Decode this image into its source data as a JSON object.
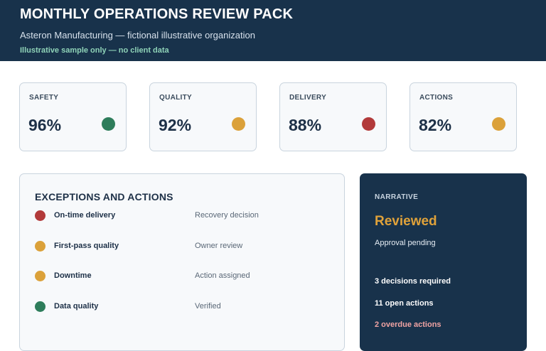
{
  "header": {
    "title": "MONTHLY OPERATIONS REVIEW PACK",
    "subtitle": "Asteron Manufacturing — fictional illustrative organization",
    "note": "Illustrative sample only — no client data"
  },
  "kpis": [
    {
      "label": "SAFETY",
      "value": "96%",
      "status": "green",
      "color": "#2e7d5b"
    },
    {
      "label": "QUALITY",
      "value": "92%",
      "status": "amber",
      "color": "#dba13a"
    },
    {
      "label": "DELIVERY",
      "value": "88%",
      "status": "red",
      "color": "#b23a3a"
    },
    {
      "label": "ACTIONS",
      "value": "82%",
      "status": "amber",
      "color": "#dba13a"
    }
  ],
  "exceptions": {
    "heading": "EXCEPTIONS AND ACTIONS",
    "rows": [
      {
        "name": "On-time delivery",
        "status": "Recovery decision",
        "color": "#b23a3a"
      },
      {
        "name": "First-pass quality",
        "status": "Owner review",
        "color": "#dba13a"
      },
      {
        "name": "Downtime",
        "status": "Action assigned",
        "color": "#dba13a"
      },
      {
        "name": "Data quality",
        "status": "Verified",
        "color": "#2e7d5b"
      }
    ]
  },
  "narrative": {
    "label": "NARRATIVE",
    "state": "Reviewed",
    "substate": "Approval pending",
    "stats": [
      "3 decisions required",
      "11 open actions",
      "2 overdue actions"
    ]
  }
}
